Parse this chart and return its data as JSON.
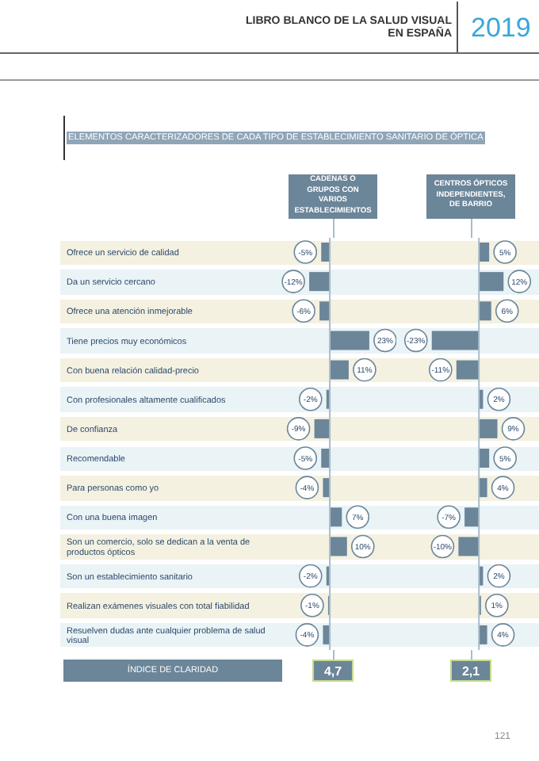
{
  "chart_data": [
    {
      "type": "bar",
      "orientation": "horizontal",
      "tick_labels": "y",
      "title": "ELEMENTOS CARACTERIZADORES DE CADA TIPO DE ESTABLECIMIENTO SANITARIO DE ÓPTICA",
      "subtitle": "CADENAS O GRUPOS CON VARIOS ESTABLECIMIENTOS",
      "color": "#6b8599",
      "categories": [
        "Ofrece un servicio de calidad",
        "Da un servicio cercano",
        "Ofrece una atención inmejorable",
        "Tiene precios muy económicos",
        "Con buena relación calidad-precio",
        "Con profesionales altamente cualificados",
        "De confianza",
        "Recomendable",
        "Para personas como yo",
        "Con una buena imagen",
        "Son un comercio, solo se dedican a la venta de productos ópticos",
        "Son un establecimiento sanitario",
        "Realizan exámenes visuales con total fiabilidad",
        "Resuelven dudas ante cualquier problema de salud visual"
      ],
      "values": [
        -5,
        -12,
        -6,
        23,
        11,
        -2,
        -9,
        -5,
        -4,
        7,
        10,
        -2,
        -1,
        -4
      ],
      "value_labels": [
        "-5%",
        "-12%",
        "-6%",
        "23%",
        "11%",
        "-2%",
        "-9%",
        "-5%",
        "-4%",
        "7%",
        "10%",
        "-2%",
        "-1%",
        "-4%"
      ],
      "ref_lines": [
        {
          "axis": "x",
          "value": 0,
          "color": "#a9bccb"
        }
      ],
      "annotations": [
        "LIBRO BLANCO DE LA SALUD VISUAL EN ESPAÑA",
        "2019",
        "ÍNDICE DE CLARIDAD",
        "4,7",
        "121"
      ]
    },
    {
      "type": "bar",
      "orientation": "horizontal",
      "tick_labels": false,
      "subtitle": "CENTROS ÓPTICOS INDEPENDIENTES, DE BARRIO",
      "color": "#6b8599",
      "categories": [
        null,
        null,
        null,
        null,
        null,
        null,
        null,
        null,
        null,
        null,
        null,
        null,
        null,
        null
      ],
      "values": [
        5,
        12,
        6,
        -23,
        -11,
        2,
        9,
        5,
        4,
        -7,
        -10,
        2,
        1,
        4
      ],
      "value_labels": [
        "5%",
        "12%",
        "6%",
        "-23%",
        "-11%",
        "2%",
        "9%",
        "5%",
        "4%",
        "-7%",
        "-10%",
        "2%",
        "1%",
        "4%"
      ],
      "ref_lines": [
        {
          "axis": "x",
          "value": 0,
          "color": "#a9bccb"
        }
      ],
      "annotations": [
        "2,1"
      ]
    }
  ]
}
